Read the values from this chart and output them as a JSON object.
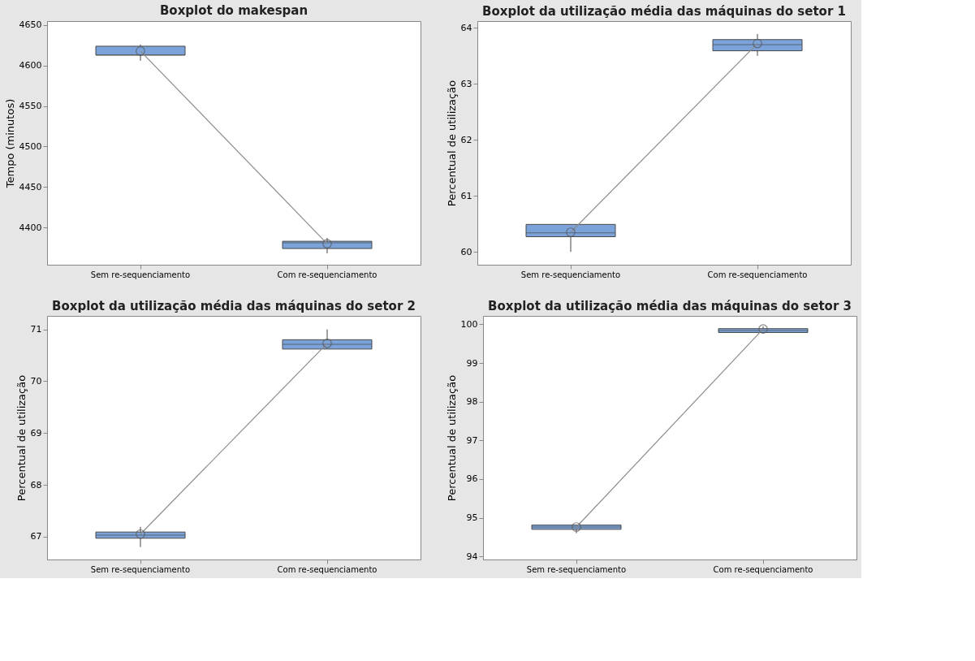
{
  "chart_data": [
    {
      "type": "box",
      "title": "Boxplot do makespan",
      "ylabel": "Tempo (minutos)",
      "categories": [
        "Sem re-sequenciamento",
        "Com re-sequenciamento"
      ],
      "ylim": [
        4354,
        4655
      ],
      "yticks": [
        4400,
        4450,
        4500,
        4550,
        4600,
        4650
      ],
      "grid": false,
      "color": "#7ba3d9",
      "boxes": [
        {
          "low": 4606,
          "q1": 4613,
          "median": 4613,
          "q3": 4624,
          "high": 4626
        },
        {
          "low": 4368,
          "q1": 4374,
          "median": 4381,
          "q3": 4383,
          "high": 4387
        }
      ],
      "series": [
        {
          "type": "line",
          "marker": "circle",
          "color": "#8c8c8c",
          "values": [
            4618,
            4380
          ]
        }
      ]
    },
    {
      "type": "box",
      "title": "Boxplot da utilização média das máquinas do setor 1",
      "ylabel": "Percentual de utilização",
      "categories": [
        "Sem re-sequenciamento",
        "Com  re-sequenciamento"
      ],
      "ylim": [
        59.77,
        64.12
      ],
      "yticks": [
        60,
        61,
        62,
        63,
        64
      ],
      "grid": false,
      "color": "#7ba3d9",
      "boxes": [
        {
          "low": 60.0,
          "q1": 60.27,
          "median": 60.34,
          "q3": 60.49,
          "high": 60.49
        },
        {
          "low": 63.5,
          "q1": 63.59,
          "median": 63.7,
          "q3": 63.79,
          "high": 63.89
        }
      ],
      "series": [
        {
          "type": "line",
          "marker": "circle",
          "color": "#8c8c8c",
          "values": [
            60.35,
            63.72
          ]
        }
      ]
    },
    {
      "type": "box",
      "title": "Boxplot da utilização média das máquinas do setor 2",
      "ylabel": "Percentual de utilização",
      "categories": [
        "Sem re-sequenciamento",
        "Com re-sequenciamento"
      ],
      "ylim": [
        66.56,
        71.26
      ],
      "yticks": [
        67,
        68,
        69,
        70,
        71
      ],
      "grid": false,
      "color": "#7ba3d9",
      "boxes": [
        {
          "low": 66.8,
          "q1": 66.97,
          "median": 67.03,
          "q3": 67.09,
          "high": 67.19
        },
        {
          "low": 70.62,
          "q1": 70.62,
          "median": 70.71,
          "q3": 70.8,
          "high": 71.0
        }
      ],
      "series": [
        {
          "type": "line",
          "marker": "circle",
          "color": "#8c8c8c",
          "values": [
            67.05,
            70.73
          ]
        }
      ]
    },
    {
      "type": "box",
      "title": "Boxplot da utilização média das máquinas do setor 3",
      "ylabel": "Percentual de utilização",
      "categories": [
        "Sem re-sequenciamento",
        "Com re-sequenciamento"
      ],
      "ylim": [
        93.92,
        100.22
      ],
      "yticks": [
        94,
        95,
        96,
        97,
        98,
        99,
        100
      ],
      "grid": false,
      "color": "#7ba3d9",
      "boxes": [
        {
          "low": 94.6,
          "q1": 94.7,
          "median": 94.76,
          "q3": 94.81,
          "high": 94.81
        },
        {
          "low": 99.79,
          "q1": 99.79,
          "median": 99.84,
          "q3": 99.89,
          "high": 99.95
        }
      ],
      "series": [
        {
          "type": "line",
          "marker": "circle",
          "color": "#8c8c8c",
          "values": [
            94.76,
            99.88
          ]
        }
      ]
    }
  ]
}
